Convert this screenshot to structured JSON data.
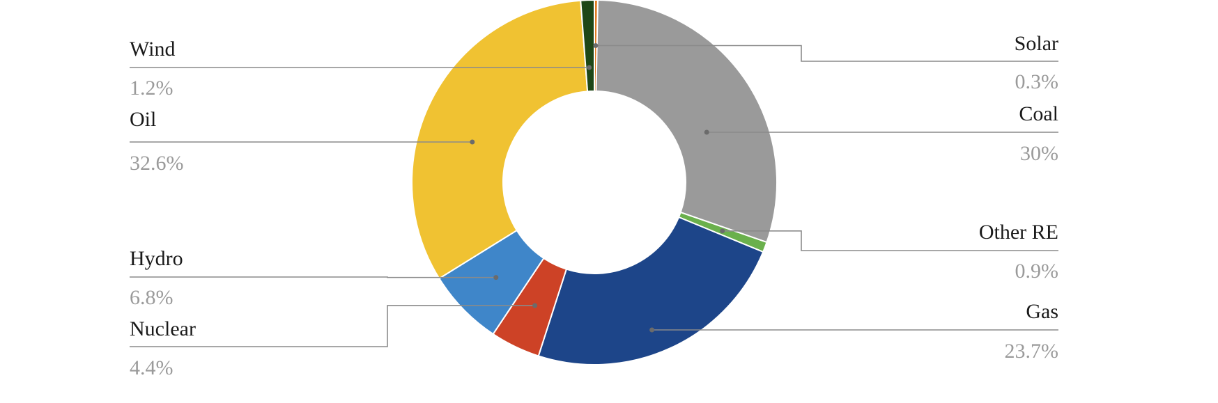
{
  "chart_data": {
    "type": "pie",
    "donut": true,
    "unit": "%",
    "slices": [
      {
        "label": "Solar",
        "value": 0.3,
        "display": "0.3%",
        "color": "#e07b22"
      },
      {
        "label": "Coal",
        "value": 30,
        "display": "30%",
        "color": "#9a9a9a"
      },
      {
        "label": "Other RE",
        "value": 0.9,
        "display": "0.9%",
        "color": "#6ab04c"
      },
      {
        "label": "Gas",
        "value": 23.7,
        "display": "23.7%",
        "color": "#1d4589"
      },
      {
        "label": "Nuclear",
        "value": 4.4,
        "display": "4.4%",
        "color": "#cd4226"
      },
      {
        "label": "Hydro",
        "value": 6.8,
        "display": "6.8%",
        "color": "#3f86c9"
      },
      {
        "label": "Oil",
        "value": 32.6,
        "display": "32.6%",
        "color": "#f0c232"
      },
      {
        "label": "Wind",
        "value": 1.2,
        "display": "1.2%",
        "color": "#1e4717"
      }
    ]
  }
}
